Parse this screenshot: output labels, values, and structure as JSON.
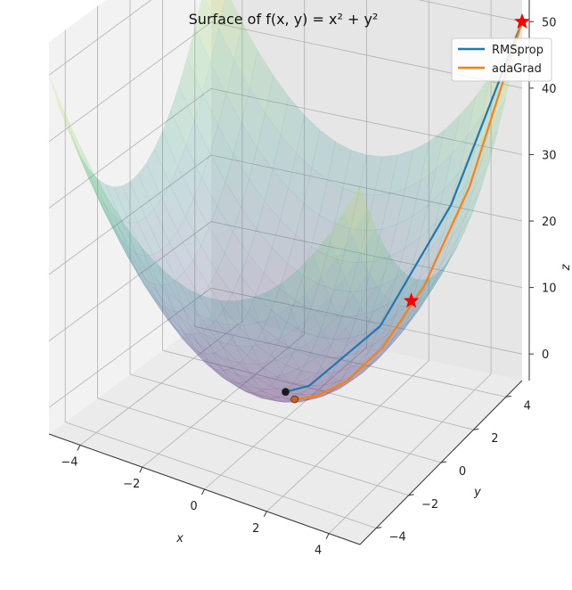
{
  "chart_data": {
    "type": "surface3d",
    "title": "Surface of f(x, y) = x² + y²",
    "xlabel": "x",
    "ylabel": "y",
    "zlabel": "z",
    "xlim": [
      -5,
      5
    ],
    "ylim": [
      -5,
      5
    ],
    "zlim": [
      -4,
      55
    ],
    "x_ticks": [
      -4,
      -2,
      0,
      2,
      4
    ],
    "y_ticks": [
      -4,
      -2,
      0,
      2,
      4
    ],
    "z_ticks": [
      0,
      10,
      20,
      30,
      40,
      50
    ],
    "surface": {
      "function": "x^2 + y^2",
      "colormap": "viridis",
      "alpha": 0.2
    },
    "grid": true,
    "legend_position": "top-right",
    "series": [
      {
        "name": "RMSprop",
        "color": "#1f77b4",
        "points": [
          [
            5,
            5,
            50
          ],
          [
            3.5,
            3.5,
            24.5
          ],
          [
            2,
            2,
            8
          ],
          [
            0.5,
            0.5,
            0.5
          ],
          [
            0,
            0,
            0
          ]
        ]
      },
      {
        "name": "adaGrad",
        "color": "#ff7f0e",
        "points": [
          [
            5,
            5,
            50
          ],
          [
            4.2,
            3.3,
            28.5
          ],
          [
            3.4,
            2.0,
            15.6
          ],
          [
            2.6,
            1.0,
            7.8
          ],
          [
            1.8,
            0.3,
            3.3
          ],
          [
            1.1,
            -0.2,
            1.25
          ],
          [
            0.5,
            -0.4,
            0.41
          ]
        ]
      }
    ],
    "markers": [
      {
        "kind": "star",
        "color": "#ff0000",
        "x": 5,
        "y": 5,
        "z": 50
      },
      {
        "kind": "star",
        "color": "#ff0000",
        "x": 3,
        "y": 2,
        "z": 13
      },
      {
        "kind": "dot",
        "color": "#1a1a1a",
        "x": 0,
        "y": 0,
        "z": 0
      },
      {
        "kind": "dot",
        "color": "#d2601a",
        "x": 0.5,
        "y": -0.4,
        "z": 0.41
      }
    ]
  }
}
